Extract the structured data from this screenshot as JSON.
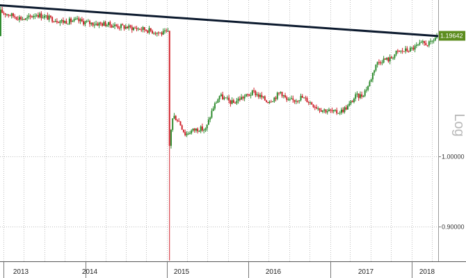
{
  "chart_data": {
    "type": "candlestick",
    "scale": "log",
    "scale_label": "Log",
    "title": "",
    "xlabel": "",
    "ylabel": "",
    "ylim": [
      0.855,
      1.262
    ],
    "y_ticks": [
      {
        "value": 1.0,
        "label": "1.00000"
      },
      {
        "value": 0.9,
        "label": "0.90000"
      }
    ],
    "last_price": {
      "value": 1.19642,
      "label": "1.19642"
    },
    "x_range": [
      "2012-12-15",
      "2018-04-30"
    ],
    "year_labels": [
      "2013",
      "2014",
      "2015",
      "2016",
      "2017",
      "2018"
    ],
    "grid": true,
    "trendline": {
      "start": [
        "2012-12-15",
        1.252
      ],
      "end": [
        "2018-04-30",
        1.196
      ]
    },
    "colors": {
      "up": "#2e8b2e",
      "down": "#d0202a",
      "trendline": "#0c1a2e",
      "last_label_bg": "#5c8d1e",
      "grid": "#bfbfbf"
    },
    "keypoints": [
      [
        "2012-12-20",
        1.241
      ],
      [
        "2013-02-15",
        1.233
      ],
      [
        "2013-04-15",
        1.226
      ],
      [
        "2013-06-01",
        1.236
      ],
      [
        "2013-08-01",
        1.228
      ],
      [
        "2013-10-01",
        1.222
      ],
      [
        "2013-12-01",
        1.224
      ],
      [
        "2014-02-01",
        1.219
      ],
      [
        "2014-04-01",
        1.218
      ],
      [
        "2014-06-01",
        1.214
      ],
      [
        "2014-08-01",
        1.211
      ],
      [
        "2014-10-01",
        1.208
      ],
      [
        "2014-12-15",
        1.201
      ],
      [
        "2015-01-14",
        1.202
      ],
      [
        "2015-01-16",
        0.985
      ],
      [
        "2015-01-22",
        1.03
      ],
      [
        "2015-02-05",
        1.062
      ],
      [
        "2015-03-01",
        1.055
      ],
      [
        "2015-04-01",
        1.033
      ],
      [
        "2015-05-01",
        1.039
      ],
      [
        "2015-06-01",
        1.042
      ],
      [
        "2015-07-01",
        1.04
      ],
      [
        "2015-08-01",
        1.073
      ],
      [
        "2015-09-01",
        1.094
      ],
      [
        "2015-10-01",
        1.088
      ],
      [
        "2015-11-01",
        1.082
      ],
      [
        "2015-12-01",
        1.09
      ],
      [
        "2016-01-01",
        1.094
      ],
      [
        "2016-02-01",
        1.1
      ],
      [
        "2016-03-01",
        1.093
      ],
      [
        "2016-04-01",
        1.085
      ],
      [
        "2016-05-01",
        1.09
      ],
      [
        "2016-06-01",
        1.101
      ],
      [
        "2016-07-01",
        1.085
      ],
      [
        "2016-08-01",
        1.087
      ],
      [
        "2016-09-01",
        1.092
      ],
      [
        "2016-10-01",
        1.086
      ],
      [
        "2016-11-01",
        1.078
      ],
      [
        "2016-12-01",
        1.072
      ],
      [
        "2017-01-01",
        1.07
      ],
      [
        "2017-02-01",
        1.067
      ],
      [
        "2017-03-01",
        1.07
      ],
      [
        "2017-04-01",
        1.078
      ],
      [
        "2017-05-01",
        1.093
      ],
      [
        "2017-06-01",
        1.095
      ],
      [
        "2017-07-01",
        1.113
      ],
      [
        "2017-08-01",
        1.147
      ],
      [
        "2017-09-01",
        1.155
      ],
      [
        "2017-10-01",
        1.155
      ],
      [
        "2017-11-01",
        1.167
      ],
      [
        "2017-12-01",
        1.17
      ],
      [
        "2018-01-01",
        1.172
      ],
      [
        "2018-02-01",
        1.178
      ],
      [
        "2018-03-01",
        1.183
      ],
      [
        "2018-04-01",
        1.182
      ],
      [
        "2018-04-30",
        1.196
      ]
    ],
    "extremes": [
      {
        "date": "2015-01-15",
        "low": 0.856,
        "high": 1.202
      }
    ]
  }
}
